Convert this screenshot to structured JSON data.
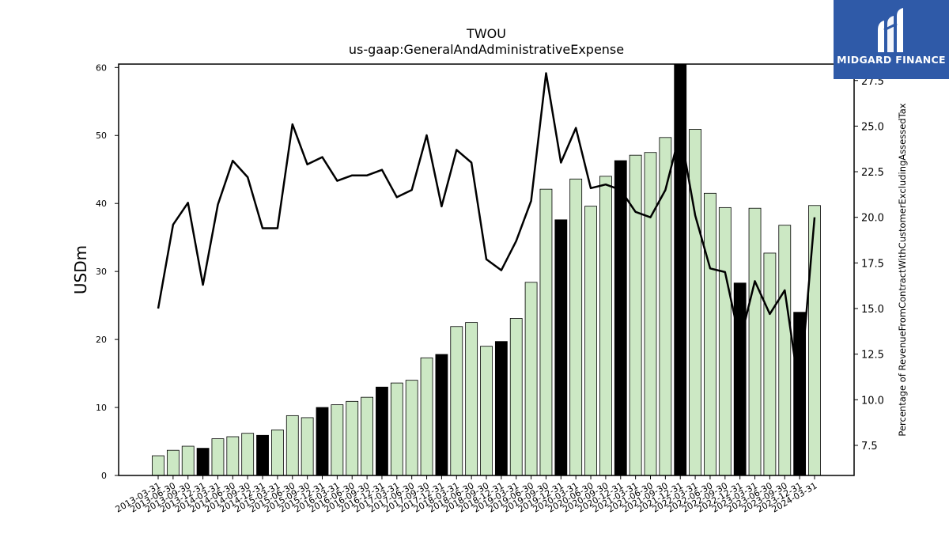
{
  "chart_data": {
    "type": "bar",
    "title": "TWOU",
    "subtitle": "us-gaap:GeneralAndAdministrativeExpense",
    "ylabel": "USDm",
    "y2label": "Percentage of RevenueFromContractWithCustomerExcludingAssessedTax",
    "ylim": [
      0,
      60.5
    ],
    "y2lim": [
      5.85,
      28.4
    ],
    "yticks": [
      0,
      10,
      20,
      30,
      40,
      50,
      60
    ],
    "y2ticks": [
      7.5,
      10.0,
      12.5,
      15.0,
      17.5,
      20.0,
      22.5,
      25.0,
      27.5
    ],
    "categories": [
      "2013-03-31",
      "2013-06-30",
      "2013-09-30",
      "2013-12-31",
      "2014-03-31",
      "2014-06-30",
      "2014-09-30",
      "2014-12-31",
      "2015-03-31",
      "2015-06-30",
      "2015-09-30",
      "2015-12-31",
      "2016-03-31",
      "2016-06-30",
      "2016-09-30",
      "2016-12-31",
      "2017-03-31",
      "2017-06-30",
      "2017-09-30",
      "2017-12-31",
      "2018-03-31",
      "2018-06-30",
      "2018-09-30",
      "2018-12-31",
      "2019-03-31",
      "2019-06-30",
      "2019-09-30",
      "2019-12-31",
      "2020-03-31",
      "2020-06-30",
      "2020-09-30",
      "2020-12-31",
      "2021-03-31",
      "2021-06-30",
      "2021-09-30",
      "2021-12-31",
      "2022-03-31",
      "2022-06-30",
      "2022-09-30",
      "2022-12-31",
      "2023-03-31",
      "2023-06-30",
      "2023-09-30",
      "2023-12-31",
      "2024-03-31"
    ],
    "series": [
      {
        "type": "bar",
        "values": [
          2.9,
          3.7,
          4.3,
          4.0,
          5.4,
          5.7,
          6.2,
          5.9,
          6.7,
          8.8,
          8.5,
          10.0,
          10.4,
          10.9,
          11.5,
          13.0,
          13.6,
          14.0,
          17.3,
          17.8,
          21.9,
          22.5,
          19.0,
          19.7,
          23.1,
          28.4,
          42.1,
          37.6,
          43.6,
          39.6,
          44.0,
          46.3,
          47.1,
          47.5,
          49.7,
          60.5,
          50.9,
          41.5,
          39.4,
          28.3,
          39.3,
          32.7,
          36.8,
          24.0,
          39.7
        ],
        "highlight": [
          false,
          false,
          false,
          true,
          false,
          false,
          false,
          true,
          false,
          false,
          false,
          true,
          false,
          false,
          false,
          true,
          false,
          false,
          false,
          true,
          false,
          false,
          false,
          true,
          false,
          false,
          false,
          true,
          false,
          false,
          false,
          true,
          false,
          false,
          false,
          true,
          false,
          false,
          false,
          true,
          false,
          false,
          false,
          true,
          false
        ],
        "color": "#cce8c4",
        "highlight_color": "#000000"
      },
      {
        "type": "line",
        "axis": "right",
        "values": [
          15.0,
          19.6,
          20.8,
          16.3,
          20.7,
          23.1,
          22.2,
          19.4,
          19.4,
          25.1,
          22.9,
          23.3,
          22.0,
          22.3,
          22.3,
          22.6,
          21.1,
          21.5,
          24.5,
          20.6,
          23.7,
          23.0,
          17.7,
          17.1,
          18.7,
          20.9,
          27.9,
          23.0,
          24.9,
          21.6,
          21.8,
          21.5,
          20.3,
          20.0,
          21.5,
          24.7,
          20.1,
          17.2,
          17.0,
          13.2,
          16.5,
          14.7,
          16.0,
          10.4,
          20.0
        ],
        "color": "#000000"
      }
    ]
  },
  "logo": {
    "text": "MIDGARD FINANCE",
    "bg": "#2f5aa8"
  }
}
